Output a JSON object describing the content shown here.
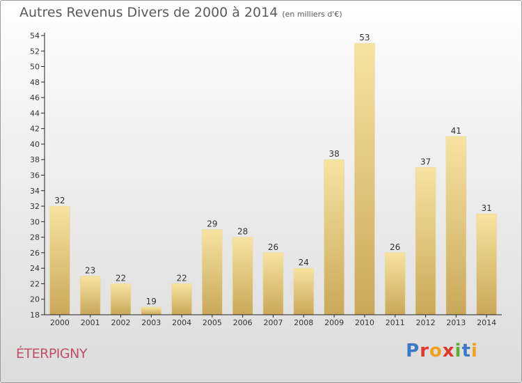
{
  "title": "Autres Revenus Divers de 2000 à 2014",
  "subtitle": "(en milliers d'€)",
  "commune": "ÉTERPIGNY",
  "logo": {
    "text": "Proxiti",
    "letter_colors": [
      "#3b78c6",
      "#e0382d",
      "#f0a21c",
      "#e0382d",
      "#5bb02e",
      "#3b78c6",
      "#f0a21c"
    ]
  },
  "colors": {
    "bar_top": "#f7e3a0",
    "bar_bottom": "#c9a85a",
    "axis": "#222222",
    "title": "#5a5a5a",
    "commune": "#c0506a"
  },
  "chart_data": {
    "type": "bar",
    "title": "Autres Revenus Divers de 2000 à 2014",
    "subtitle": "(en milliers d'€)",
    "categories": [
      "2000",
      "2001",
      "2002",
      "2003",
      "2004",
      "2005",
      "2006",
      "2007",
      "2008",
      "2009",
      "2010",
      "2011",
      "2012",
      "2013",
      "2014"
    ],
    "values": [
      32,
      23,
      22,
      19,
      22,
      29,
      28,
      26,
      24,
      38,
      53,
      26,
      37,
      41,
      31
    ],
    "ylim": [
      18,
      54
    ],
    "ytick_step": 2,
    "grid": false,
    "legend": "none",
    "xlabel": "",
    "ylabel": ""
  }
}
